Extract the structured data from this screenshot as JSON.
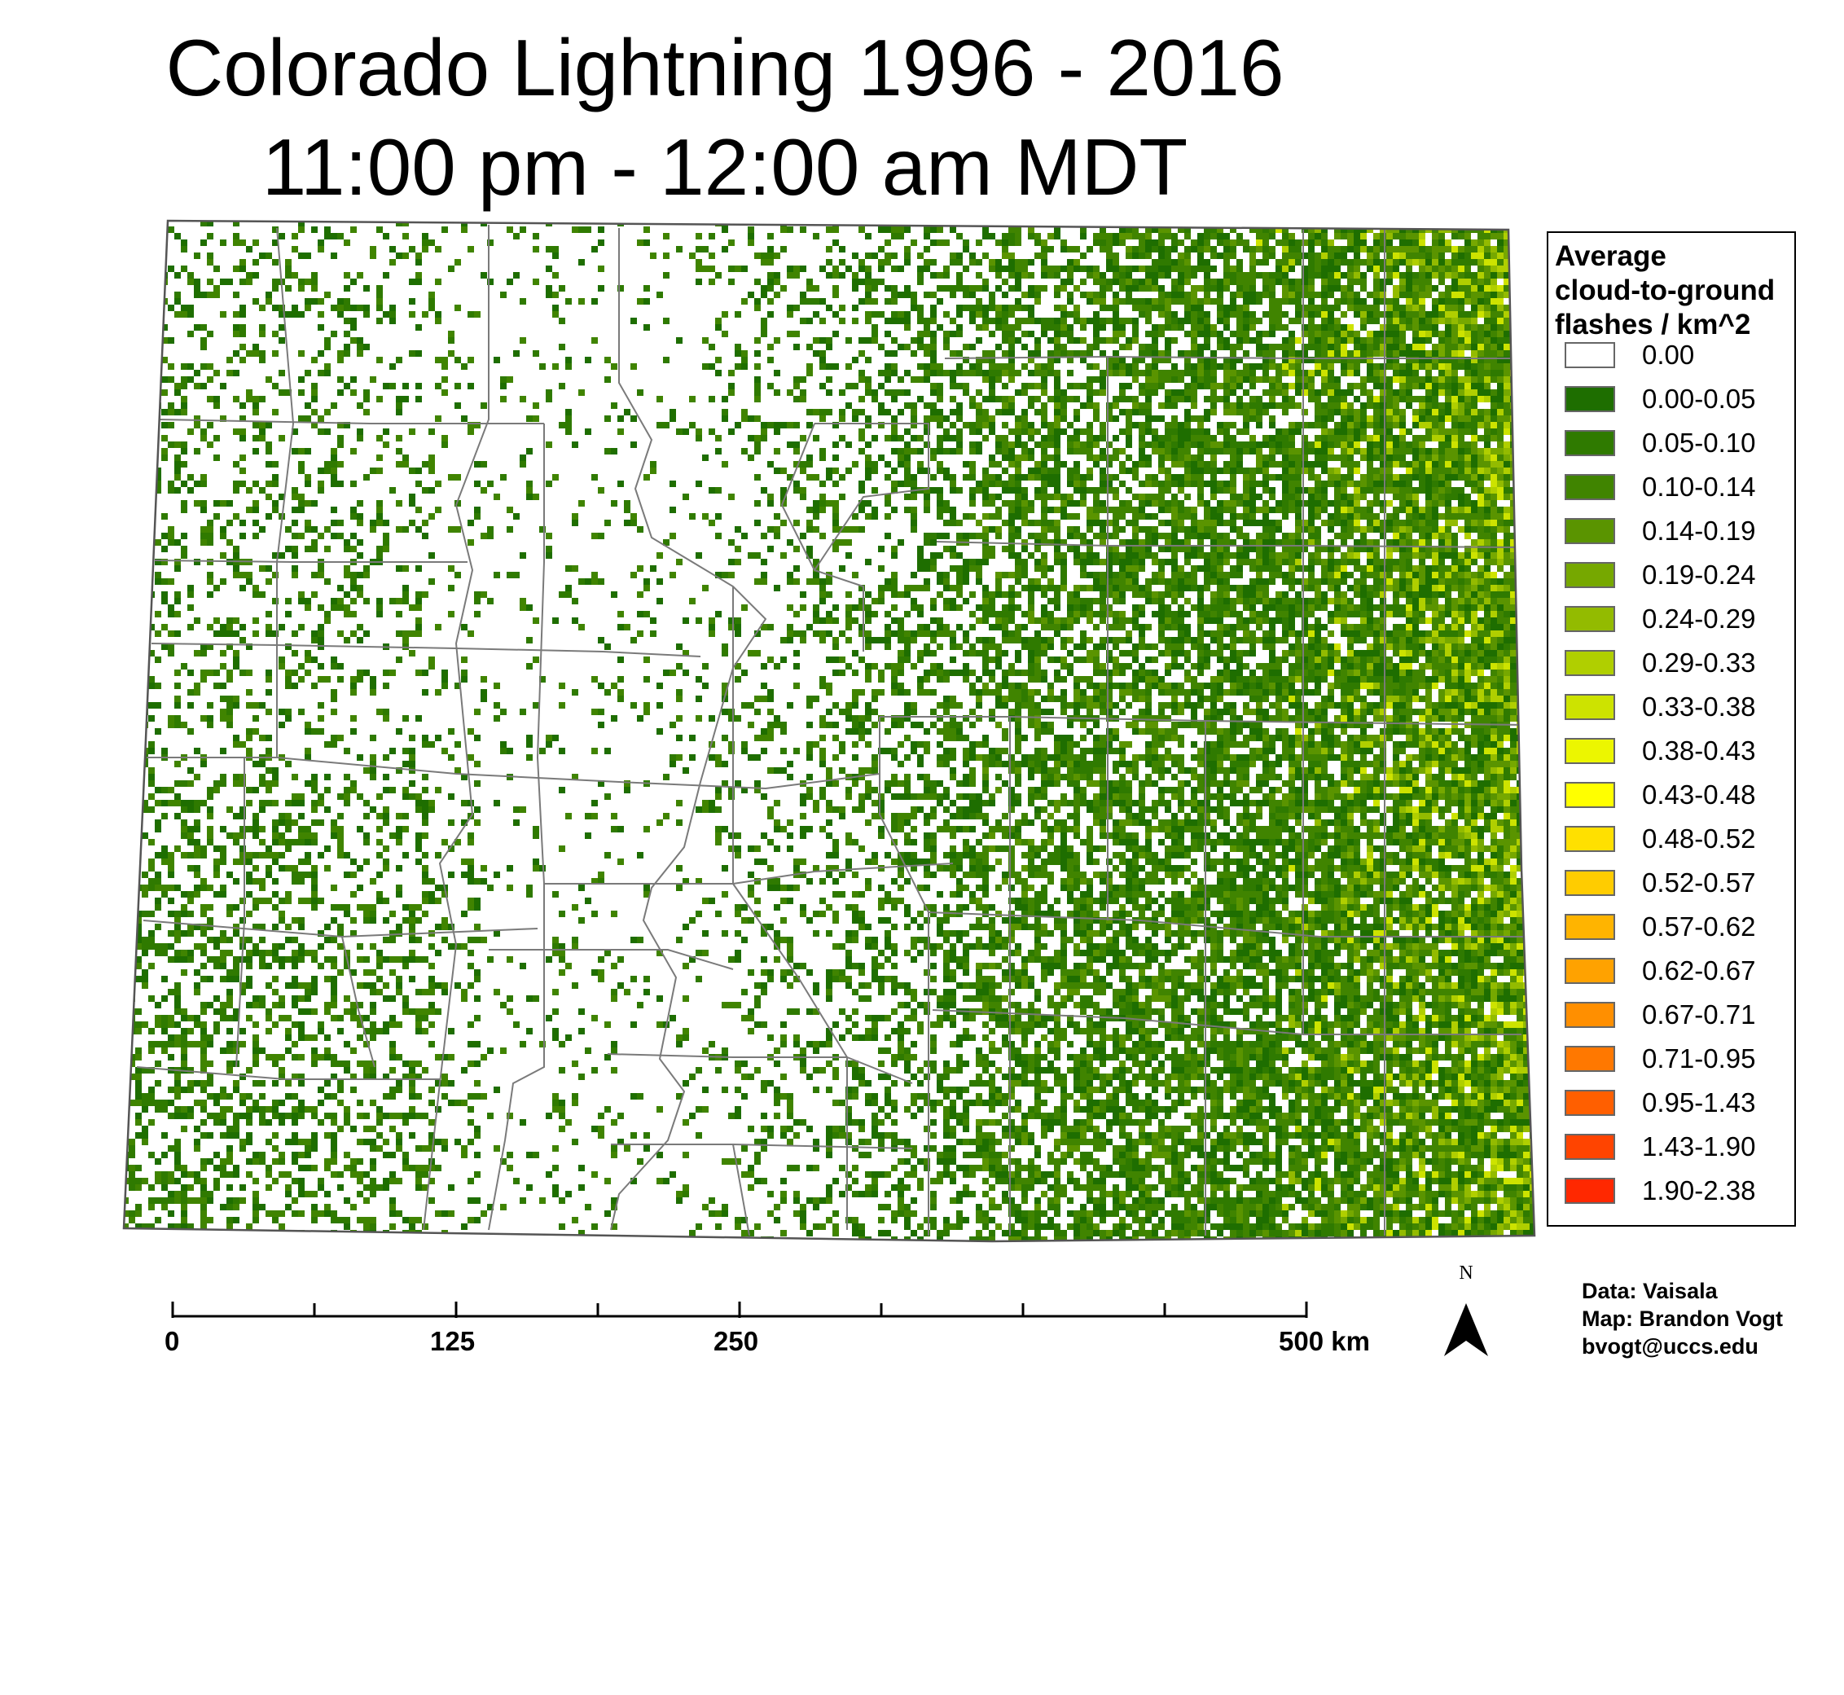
{
  "title": {
    "line1": "Colorado Lightning 1996 - 2016",
    "line2": "11:00 pm - 12:00 am MDT"
  },
  "map": {
    "region": "Colorado",
    "county_boundaries": true,
    "density_pattern": "low in western and central mountains, rising eastward toward the Kansas border"
  },
  "legend": {
    "title_lines": [
      "Average",
      "cloud-to-ground",
      "flashes / km^2"
    ],
    "items": [
      {
        "label": "0.00",
        "color": "#ffffff"
      },
      {
        "label": "0.00-0.05",
        "color": "#1e6e00"
      },
      {
        "label": "0.05-0.10",
        "color": "#2f7a00"
      },
      {
        "label": "0.10-0.14",
        "color": "#408400"
      },
      {
        "label": "0.14-0.19",
        "color": "#5a9400"
      },
      {
        "label": "0.19-0.24",
        "color": "#76a800"
      },
      {
        "label": "0.24-0.29",
        "color": "#93bb00"
      },
      {
        "label": "0.29-0.33",
        "color": "#b0cf00"
      },
      {
        "label": "0.33-0.38",
        "color": "#cde300"
      },
      {
        "label": "0.38-0.43",
        "color": "#ecf600"
      },
      {
        "label": "0.43-0.48",
        "color": "#ffff00"
      },
      {
        "label": "0.48-0.52",
        "color": "#ffe000"
      },
      {
        "label": "0.52-0.57",
        "color": "#ffcc00"
      },
      {
        "label": "0.57-0.62",
        "color": "#ffb400"
      },
      {
        "label": "0.62-0.67",
        "color": "#ffa200"
      },
      {
        "label": "0.67-0.71",
        "color": "#ff8f00"
      },
      {
        "label": "0.71-0.95",
        "color": "#ff7800"
      },
      {
        "label": "0.95-1.43",
        "color": "#ff5f00"
      },
      {
        "label": "1.43-1.90",
        "color": "#ff4400"
      },
      {
        "label": "1.90-2.38",
        "color": "#ff2800"
      }
    ]
  },
  "scale_bar": {
    "labels": [
      "0",
      "125",
      "250",
      "500 km"
    ]
  },
  "north_arrow": {
    "label": "N",
    "icon": "north-arrow-icon"
  },
  "credits": {
    "data": "Data: Vaisala",
    "map": "Map: Brandon Vogt",
    "email": "bvogt@uccs.edu"
  }
}
